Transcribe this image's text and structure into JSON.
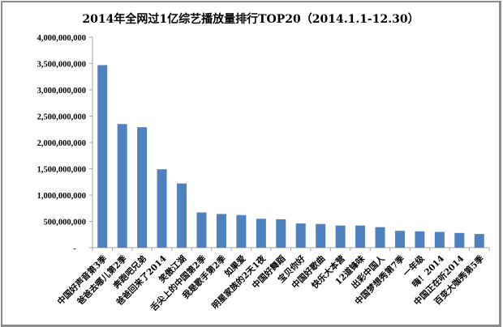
{
  "chart_data": {
    "type": "bar",
    "title": "2014年全网过1亿综艺播放量排行TOP20（2014.1.1-12.30）",
    "xlabel": "",
    "ylabel": "",
    "ylim": [
      0,
      4000000000
    ],
    "yticks": [
      0,
      500000000,
      1000000000,
      1500000000,
      2000000000,
      2500000000,
      3000000000,
      3500000000,
      4000000000
    ],
    "ytick_labels": [
      "-",
      "500,000,000",
      "1,000,000,000",
      "1,500,000,000",
      "2,000,000,000",
      "2,500,000,000",
      "3,000,000,000",
      "3,500,000,000",
      "4,000,000,000"
    ],
    "grid": false,
    "legend": "none",
    "bar_color": "#4f81bd",
    "categories": [
      "中国好声音第3季",
      "爸爸去哪儿第2季",
      "奔跑吧兄弟",
      "爸爸回来了2014",
      "笑傲江湖",
      "舌尖上的中国第2季",
      "我是歌手第2季",
      "如果爱",
      "明星家族的2天1夜",
      "中国好舞蹈",
      "宝贝你好",
      "中国好歌曲",
      "快乐大本营",
      "12道锋味",
      "出彩中国人",
      "中国梦想秀第7季",
      "一年级",
      "嗨！2014",
      "中国正在听2014",
      "百变大咖秀第5季"
    ],
    "values": [
      3470000000,
      2350000000,
      2290000000,
      1490000000,
      1220000000,
      670000000,
      640000000,
      620000000,
      550000000,
      540000000,
      460000000,
      450000000,
      420000000,
      420000000,
      390000000,
      320000000,
      310000000,
      300000000,
      280000000,
      260000000
    ]
  }
}
